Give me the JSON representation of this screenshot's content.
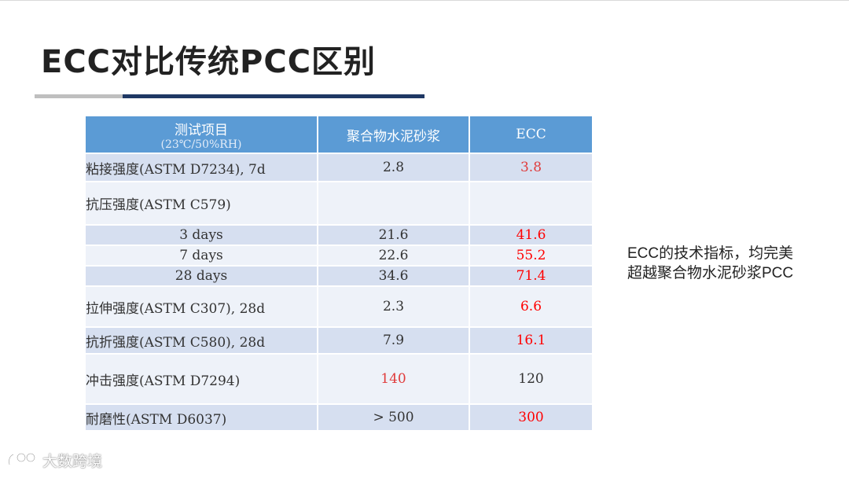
{
  "slide": {
    "title": "ECC对比传统PCC区别"
  },
  "table": {
    "headers": {
      "item": "测试项目",
      "item_condition": "(23℃/50%RH)",
      "col_polymer": "聚合物水泥砂浆",
      "col_ecc": "ECC"
    },
    "rows": {
      "bond": {
        "label": "粘接强度(ASTM D7234), 7d",
        "polymer": "2.8",
        "ecc": "3.8"
      },
      "compress": {
        "label": "抗压强度(ASTM C579)"
      },
      "compress_3": {
        "label": "3 days",
        "polymer": "21.6",
        "ecc": "41.6"
      },
      "compress_7": {
        "label": "7 days",
        "polymer": "22.6",
        "ecc": "55.2"
      },
      "compress_28": {
        "label": "28 days",
        "polymer": "34.6",
        "ecc": "71.4"
      },
      "tensile": {
        "label": "拉伸强度(ASTM C307), 28d",
        "polymer": "2.3",
        "ecc": "6.6"
      },
      "flexural": {
        "label": "抗折强度(ASTM C580), 28d",
        "polymer": "7.9",
        "ecc": "16.1"
      },
      "impact": {
        "label": "冲击强度(ASTM D7294)",
        "polymer": "140",
        "ecc": "120"
      },
      "abrasion": {
        "label": "耐磨性(ASTM D6037)",
        "polymer": "> 500",
        "ecc": "300"
      }
    }
  },
  "side_note": "ECC的技术指标，均完美超越聚合物水泥砂浆PCC",
  "watermark": {
    "text": "大数跨境",
    "icon": "logo-icon"
  },
  "colors": {
    "header_bg": "#5b9bd5",
    "row_shade": "#d6dff0",
    "row_light": "#eef2f9",
    "accent_red": "#ff0000",
    "title_underline": "#1f3864"
  }
}
